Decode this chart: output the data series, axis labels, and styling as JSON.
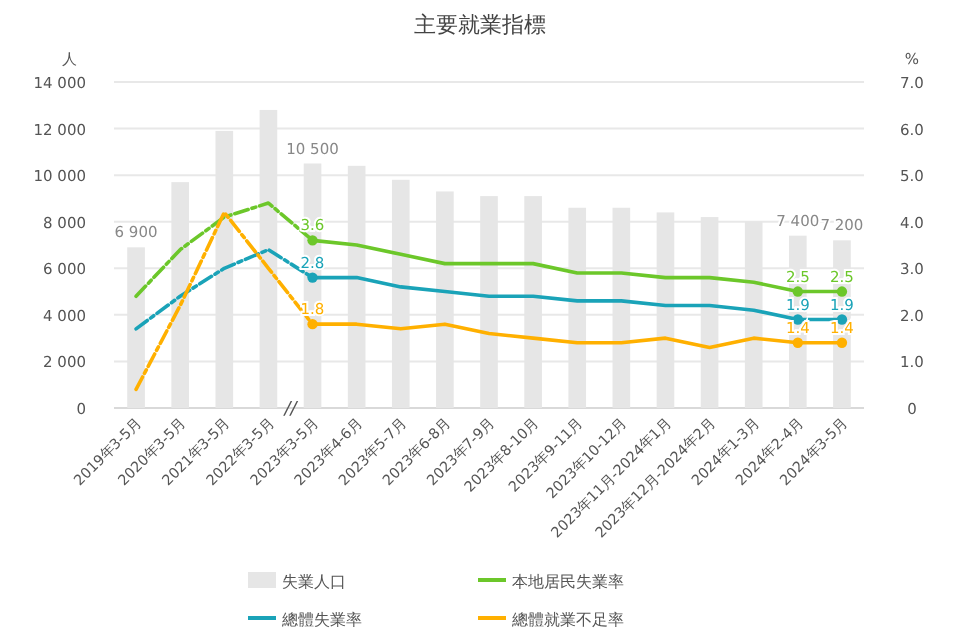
{
  "chart_data": {
    "type": "bar",
    "title": "主要就業指標",
    "ylabel": "人",
    "y2label": "%",
    "categories": [
      "2019年3-5月",
      "2020年3-5月",
      "2021年3-5月",
      "2022年3-5月",
      "2023年3-5月",
      "2023年4-6月",
      "2023年5-7月",
      "2023年6-8月",
      "2023年7-9月",
      "2023年8-10月",
      "2023年9-11月",
      "2023年10-12月",
      "2023年11月-2024年1月",
      "2023年12月-2024年2月",
      "2024年1-3月",
      "2024年2-4月",
      "2024年3-5月"
    ],
    "series": [
      {
        "name": "失業人口",
        "color": "#e6e6e6",
        "values": [
          6900,
          9700,
          11900,
          12800,
          10500,
          10400,
          9800,
          9300,
          9100,
          9100,
          8600,
          8600,
          8400,
          8200,
          8000,
          7400,
          7200
        ],
        "value_labels": [
          "6 900",
          null,
          null,
          null,
          "10 500",
          null,
          null,
          null,
          null,
          null,
          null,
          null,
          null,
          null,
          null,
          "7 400",
          "7 200"
        ]
      },
      {
        "type": "line",
        "axis": "y2",
        "color": "#6cc72a",
        "line_style": "dashed",
        "values": [
          2.4,
          3.4,
          4.1,
          4.4,
          3.6,
          null,
          null,
          null,
          null,
          null,
          null,
          null,
          null,
          null,
          null,
          null,
          null
        ]
      },
      {
        "name": "本地居民失業率",
        "type": "line",
        "axis": "y2",
        "color": "#6cc72a",
        "line_style": "solid",
        "values": [
          null,
          null,
          null,
          null,
          3.6,
          3.5,
          3.3,
          3.1,
          3.1,
          3.1,
          2.9,
          2.9,
          2.8,
          2.8,
          2.7,
          2.5,
          2.5
        ],
        "value_labels": [
          null,
          null,
          null,
          null,
          "3.6",
          null,
          null,
          null,
          null,
          null,
          null,
          null,
          null,
          null,
          null,
          "2.5",
          "2.5"
        ]
      },
      {
        "type": "line",
        "axis": "y2",
        "color": "#1aa3b8",
        "line_style": "dashed",
        "values": [
          1.7,
          2.4,
          3.0,
          3.4,
          2.8,
          null,
          null,
          null,
          null,
          null,
          null,
          null,
          null,
          null,
          null,
          null,
          null
        ]
      },
      {
        "name": "總體失業率",
        "type": "line",
        "axis": "y2",
        "color": "#1aa3b8",
        "line_style": "solid",
        "values": [
          null,
          null,
          null,
          null,
          2.8,
          2.8,
          2.6,
          2.5,
          2.4,
          2.4,
          2.3,
          2.3,
          2.2,
          2.2,
          2.1,
          1.9,
          1.9
        ],
        "value_labels": [
          null,
          null,
          null,
          null,
          "2.8",
          null,
          null,
          null,
          null,
          null,
          null,
          null,
          null,
          null,
          null,
          "1.9",
          "1.9"
        ]
      },
      {
        "type": "line",
        "axis": "y2",
        "color": "#ffb000",
        "line_style": "dashed",
        "values": [
          0.4,
          2.2,
          4.2,
          3.0,
          1.8,
          null,
          null,
          null,
          null,
          null,
          null,
          null,
          null,
          null,
          null,
          null,
          null
        ]
      },
      {
        "name": "總體就業不足率",
        "type": "line",
        "axis": "y2",
        "color": "#ffb000",
        "line_style": "solid",
        "values": [
          null,
          null,
          null,
          null,
          1.8,
          1.8,
          1.7,
          1.8,
          1.6,
          1.5,
          1.4,
          1.4,
          1.5,
          1.3,
          1.5,
          1.4,
          1.4
        ],
        "value_labels": [
          null,
          null,
          null,
          null,
          "1.8",
          null,
          null,
          null,
          null,
          null,
          null,
          null,
          null,
          null,
          null,
          "1.4",
          "1.4"
        ]
      }
    ],
    "ylim": [
      0,
      14000
    ],
    "yticks": [
      0,
      {
        "value": 2000,
        "label": "2 000"
      },
      {
        "value": 4000,
        "label": "4 000"
      },
      {
        "value": 6000,
        "label": "6 000"
      },
      {
        "value": 8000,
        "label": "8 000"
      },
      {
        "value": 10000,
        "label": "10 000"
      },
      {
        "value": 12000,
        "label": "12 000"
      },
      {
        "value": 14000,
        "label": "14 000"
      }
    ],
    "y2lim": [
      0,
      7
    ],
    "y2ticks": [
      0,
      {
        "value": 1,
        "label": "1.0"
      },
      {
        "value": 2,
        "label": "2.0"
      },
      {
        "value": 3,
        "label": "3.0"
      },
      {
        "value": 4,
        "label": "4.0"
      },
      {
        "value": 5,
        "label": "5.0"
      },
      {
        "value": 6,
        "label": "6.0"
      },
      {
        "value": 7,
        "label": "7.0"
      }
    ],
    "grid": "y",
    "legend": "bottom",
    "annotations": [
      "//"
    ]
  }
}
